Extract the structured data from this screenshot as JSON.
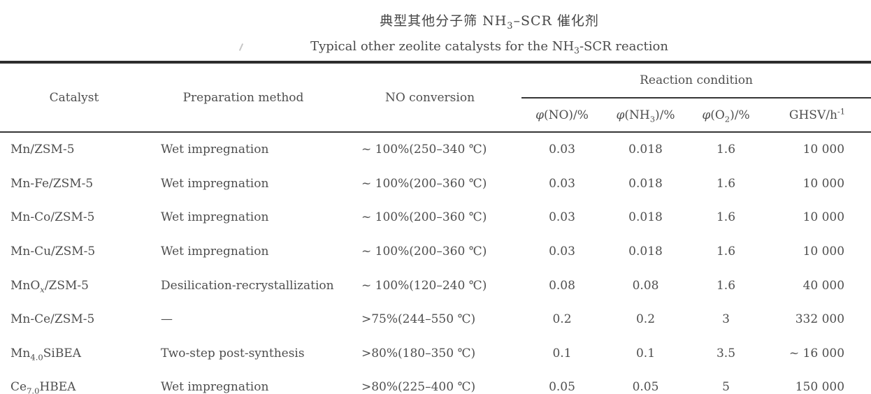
{
  "page": {
    "background": "#ffffff",
    "text_color": "#4e4e4e",
    "rule_color": "#2d2d2d"
  },
  "title": {
    "zh": [
      {
        "t": "典型其他分子筛 NH"
      },
      {
        "t": "3",
        "s": "sub"
      },
      {
        "t": "–SCR 催化剂"
      }
    ],
    "en": [
      {
        "t": "Typical other zeolite catalysts for the NH"
      },
      {
        "t": "3",
        "s": "sub"
      },
      {
        "t": "-SCR reaction"
      }
    ]
  },
  "table": {
    "columns": {
      "catalyst": "Catalyst",
      "preparation": "Preparation method",
      "no_conversion": "NO conversion",
      "reaction_condition": "Reaction condition",
      "sub": [
        [
          {
            "t": "φ",
            "i": 1
          },
          {
            "t": "(NO)/%"
          }
        ],
        [
          {
            "t": "φ",
            "i": 1
          },
          {
            "t": "(NH"
          },
          {
            "t": "3",
            "s": "sub"
          },
          {
            "t": ")/%"
          }
        ],
        [
          {
            "t": "φ",
            "i": 1
          },
          {
            "t": "(O"
          },
          {
            "t": "2",
            "s": "sub"
          },
          {
            "t": ")/%"
          }
        ],
        [
          {
            "t": "GHSV/h"
          },
          {
            "t": "-1",
            "s": "sup"
          }
        ]
      ]
    },
    "rows": [
      {
        "catalyst": "Mn/ZSM-5",
        "preparation": "Wet impregnation",
        "no_conversion": "~ 100%(250–340 ℃)",
        "phi_no": "0.03",
        "phi_nh3": "0.018",
        "phi_o2": "1.6",
        "ghsv": "10 000"
      },
      {
        "catalyst": "Mn-Fe/ZSM-5",
        "preparation": "Wet impregnation",
        "no_conversion": "~ 100%(200–360 ℃)",
        "phi_no": "0.03",
        "phi_nh3": "0.018",
        "phi_o2": "1.6",
        "ghsv": "10 000"
      },
      {
        "catalyst": "Mn-Co/ZSM-5",
        "preparation": "Wet impregnation",
        "no_conversion": "~ 100%(200–360 ℃)",
        "phi_no": "0.03",
        "phi_nh3": "0.018",
        "phi_o2": "1.6",
        "ghsv": "10 000"
      },
      {
        "catalyst": "Mn-Cu/ZSM-5",
        "preparation": "Wet impregnation",
        "no_conversion": "~ 100%(200–360 ℃)",
        "phi_no": "0.03",
        "phi_nh3": "0.018",
        "phi_o2": "1.6",
        "ghsv": "10 000"
      },
      {
        "catalyst": [
          {
            "t": "MnO"
          },
          {
            "t": "x",
            "s": "sub",
            "i": 1
          },
          {
            "t": "/ZSM-5"
          }
        ],
        "preparation": "Desilication-recrystallization",
        "no_conversion": "~ 100%(120–240 ℃)",
        "phi_no": "0.08",
        "phi_nh3": "0.08",
        "phi_o2": "1.6",
        "ghsv": "40 000"
      },
      {
        "catalyst": "Mn-Ce/ZSM-5",
        "preparation": "—",
        "no_conversion": ">75%(244–550 ℃)",
        "phi_no": "0.2",
        "phi_nh3": "0.2",
        "phi_o2": "3",
        "ghsv": "332 000"
      },
      {
        "catalyst": [
          {
            "t": "Mn"
          },
          {
            "t": "4.0",
            "s": "sub"
          },
          {
            "t": "SiBEA"
          }
        ],
        "preparation": "Two-step post-synthesis",
        "no_conversion": ">80%(180–350 ℃)",
        "phi_no": "0.1",
        "phi_nh3": "0.1",
        "phi_o2": "3.5",
        "ghsv": "~ 16 000"
      },
      {
        "catalyst": [
          {
            "t": "Ce"
          },
          {
            "t": "7.0",
            "s": "sub"
          },
          {
            "t": "HBEA"
          }
        ],
        "preparation": "Wet impregnation",
        "no_conversion": ">80%(225–400 ℃)",
        "phi_no": "0.05",
        "phi_nh3": "0.05",
        "phi_o2": "5",
        "ghsv": "150 000"
      }
    ]
  }
}
